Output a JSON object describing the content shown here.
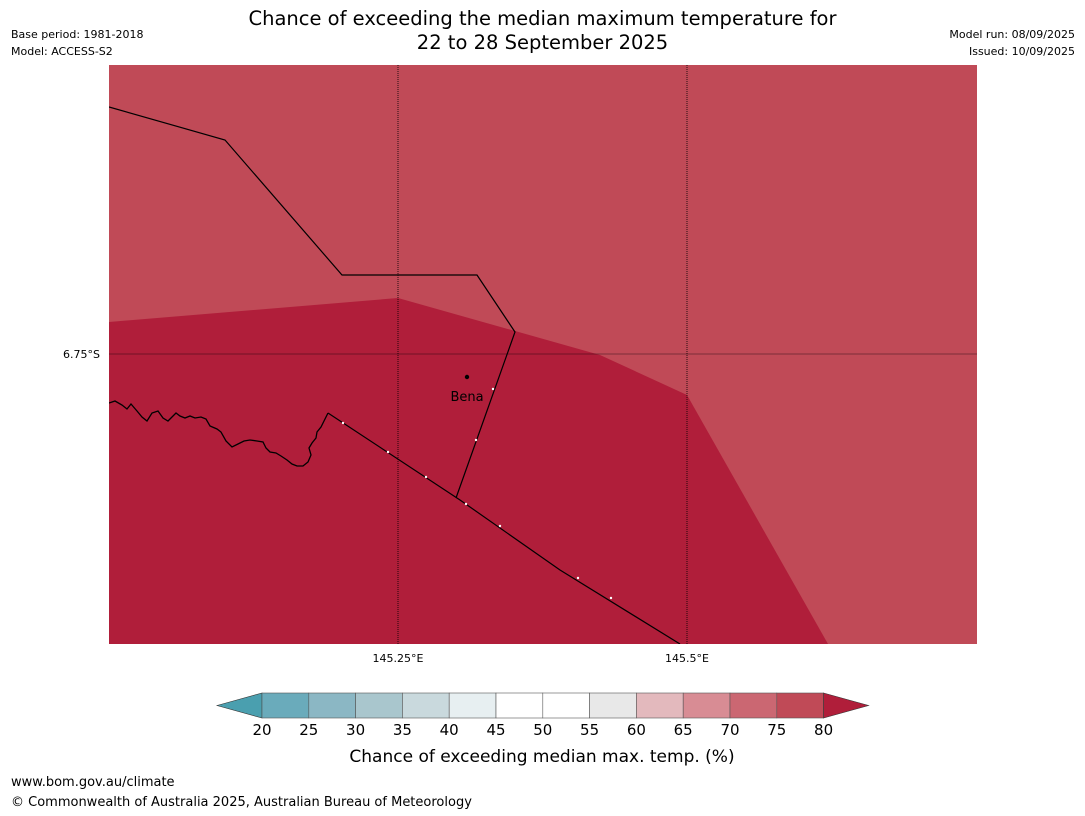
{
  "header": {
    "title_line1": "Chance of exceeding the median maximum temperature for",
    "title_line2": "22 to 28 September 2025",
    "base_period": "Base period: 1981-2018",
    "model": "Model: ACCESS-S2",
    "model_run": "Model run: 08/09/2025",
    "issued": "Issued: 10/09/2025"
  },
  "map": {
    "place_label": "Bena",
    "lat_labels": [
      "6.75°S"
    ],
    "lon_labels": [
      "145.25°E",
      "145.5°E"
    ],
    "fill_colors": {
      "above_75": "#b01e3a",
      "70_to_75": "#c04a57"
    }
  },
  "colorbar": {
    "ticks": [
      "20",
      "25",
      "30",
      "35",
      "40",
      "45",
      "50",
      "55",
      "60",
      "65",
      "70",
      "75",
      "80"
    ],
    "colors": [
      "#6aabbb",
      "#8bb7c4",
      "#a9c6cd",
      "#c9d9dd",
      "#e7eff1",
      "#ffffff",
      "#ffffff",
      "#e8e8e8",
      "#e3b9bd",
      "#d88c94",
      "#cb6772",
      "#c04a57"
    ],
    "under_color": "#4a9faf",
    "over_color": "#b01e3a",
    "label": "Chance of exceeding median max. temp. (%)"
  },
  "footer": {
    "url": "www.bom.gov.au/climate",
    "copyright": "© Commonwealth of Australia 2025, Australian Bureau of Meteorology"
  }
}
